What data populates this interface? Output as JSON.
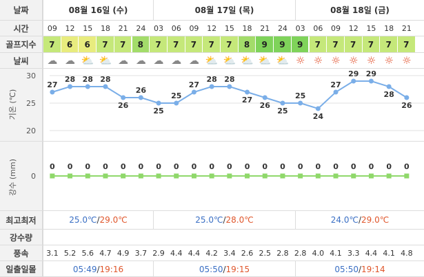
{
  "labels": {
    "date": "날짜",
    "time": "시간",
    "golf": "골프지수",
    "weather": "날씨",
    "temp_axis": "기온 (℃)",
    "rain_axis": "강수 (mm)",
    "hilo": "최고최저",
    "precip": "강수량",
    "wind": "풍속",
    "sunrise": "일출일몰"
  },
  "days": [
    {
      "date": "08월 16일 (수)",
      "min": "25.0℃",
      "max": "29.0℃",
      "sunrise": "05:49",
      "sunset": "19:16"
    },
    {
      "date": "08월 17일 (목)",
      "min": "25.0℃",
      "max": "28.0℃",
      "sunrise": "05:50",
      "sunset": "19:15"
    },
    {
      "date": "08월 18일 (금)",
      "min": "24.0℃",
      "max": "29.0℃",
      "sunrise": "05:50",
      "sunset": "19:14"
    }
  ],
  "hilo_sep": "/",
  "times": [
    "09",
    "12",
    "15",
    "18",
    "21",
    "24",
    "03",
    "06",
    "09",
    "12",
    "15",
    "18",
    "21",
    "24",
    "03",
    "06",
    "09",
    "12",
    "15",
    "18",
    "21"
  ],
  "golf_index": [
    7,
    6,
    6,
    7,
    7,
    8,
    7,
    7,
    7,
    7,
    7,
    8,
    9,
    9,
    9,
    7,
    7,
    7,
    7,
    7,
    7
  ],
  "weather_icons": [
    "cloudy-icon",
    "cloudy-icon",
    "partly-sunny-icon",
    "partly-sunny-icon",
    "cloudy-icon",
    "cloudy-icon",
    "cloudy-icon",
    "cloudy-icon",
    "cloudy-icon",
    "partly-sunny-icon",
    "partly-sunny-icon",
    "partly-sunny-icon",
    "partly-sunny-icon",
    "partly-sunny-icon",
    "sun-icon",
    "sun-icon",
    "sun-icon",
    "sun-icon",
    "sun-icon",
    "sun-icon",
    "sun-icon"
  ],
  "wind": [
    "3.1",
    "5.2",
    "5.6",
    "4.7",
    "4.9",
    "3.7",
    "2.9",
    "4.4",
    "4.4",
    "4.2",
    "3.4",
    "2.6",
    "2.5",
    "2.8",
    "2.8",
    "4.0",
    "4.1",
    "3.3",
    "4.4",
    "4.1",
    "4.8"
  ],
  "colors": {
    "golf_7": "#c5e87a",
    "golf_6": "#e8ec7e",
    "golf_8": "#a3dc6a",
    "golf_9": "#7fd35a",
    "temp_line": "#7aaee8",
    "rain_line": "#8fd86a",
    "min_text": "#3a6fc4",
    "max_text": "#e0562b"
  },
  "chart_data": [
    {
      "type": "line",
      "x": [
        "09",
        "12",
        "15",
        "18",
        "21",
        "24",
        "03",
        "06",
        "09",
        "12",
        "15",
        "18",
        "21",
        "24",
        "03",
        "06",
        "09",
        "12",
        "15",
        "18",
        "21"
      ],
      "series": [
        {
          "values": [
            27,
            28,
            28,
            28,
            26,
            26,
            25,
            25,
            27,
            28,
            28,
            27,
            26,
            25,
            25,
            24,
            27,
            29,
            29,
            28,
            26
          ]
        }
      ],
      "ylabel": "기온 (℃)",
      "yticks": [
        20,
        25,
        30
      ],
      "ylim": [
        20,
        30
      ]
    },
    {
      "type": "line",
      "x": [
        "09",
        "12",
        "15",
        "18",
        "21",
        "24",
        "03",
        "06",
        "09",
        "12",
        "15",
        "18",
        "21",
        "24",
        "03",
        "06",
        "09",
        "12",
        "15",
        "18",
        "21"
      ],
      "series": [
        {
          "values": [
            0,
            0,
            0,
            0,
            0,
            0,
            0,
            0,
            0,
            0,
            0,
            0,
            0,
            0,
            0,
            0,
            0,
            0,
            0,
            0,
            0
          ]
        }
      ],
      "ylabel": "강수 (mm)",
      "yticks": [
        0
      ]
    }
  ]
}
